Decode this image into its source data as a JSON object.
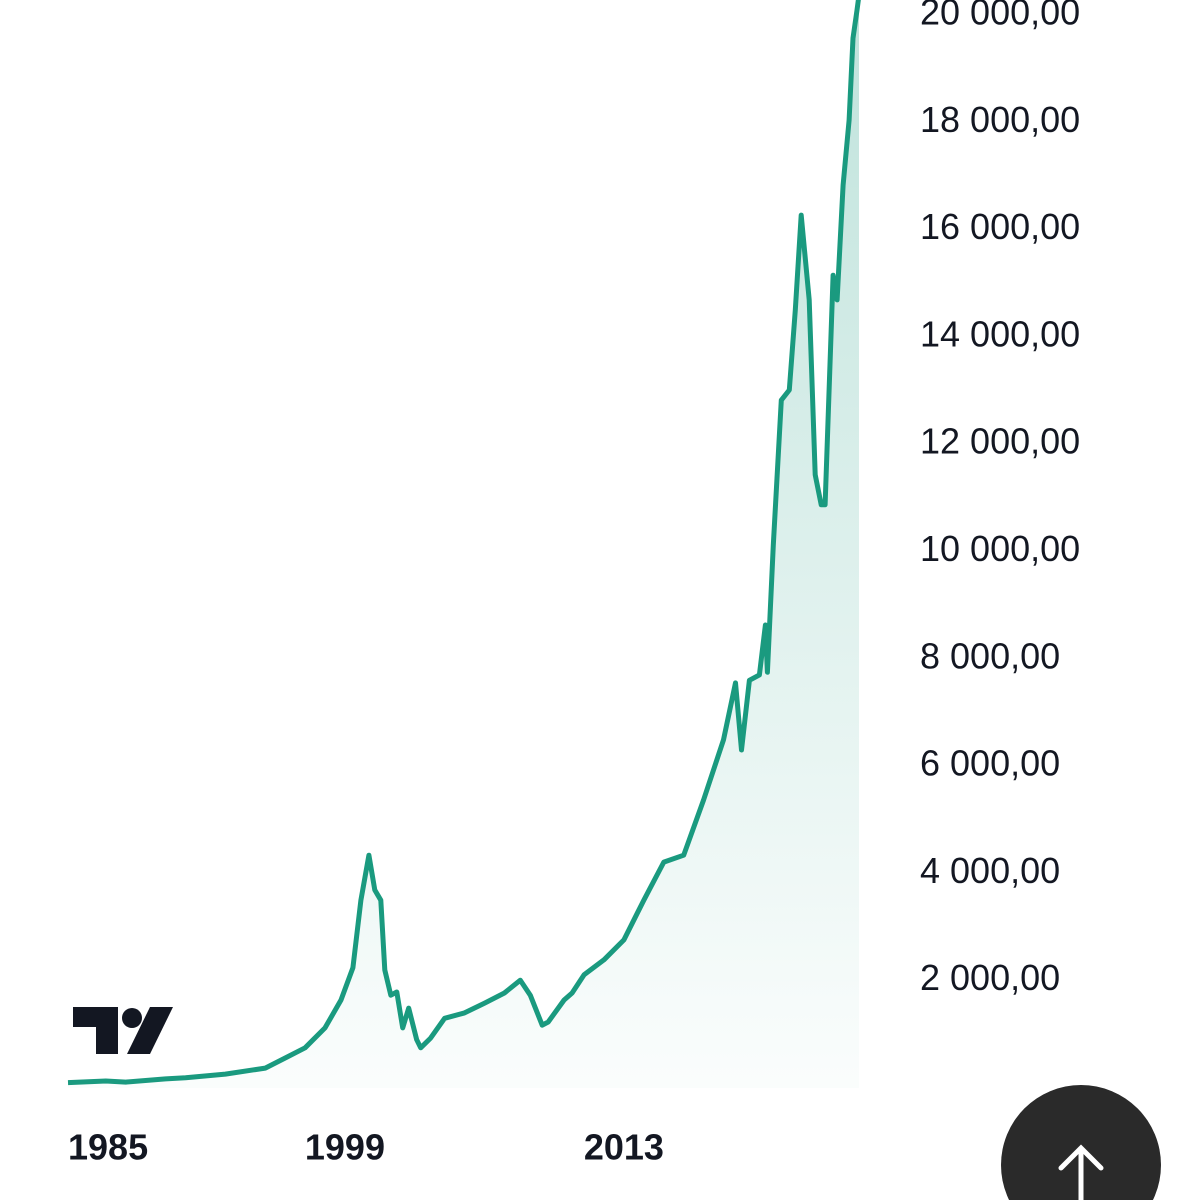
{
  "chart_data": {
    "type": "line",
    "x": [
      1985.1,
      1987,
      1988,
      1990,
      1991,
      1993,
      1995,
      1996,
      1997,
      1998,
      1998.8,
      1999.4,
      1999.8,
      2000.2,
      2000.5,
      2000.8,
      2001.0,
      2001.3,
      2001.6,
      2001.9,
      2002.2,
      2002.6,
      2002.8,
      2003.3,
      2004,
      2005,
      2006,
      2007,
      2007.8,
      2008.3,
      2008.9,
      2009.2,
      2010,
      2010.4,
      2011,
      2012,
      2013,
      2014,
      2015,
      2016,
      2017,
      2018,
      2018.6,
      2018.9,
      2019.3,
      2019.8,
      2020.1,
      2020.2,
      2020.5,
      2020.9,
      2021.3,
      2021.6,
      2021.9,
      2022.3,
      2022.6,
      2022.9,
      2023.1,
      2023.5,
      2023.7,
      2024,
      2024.3,
      2024.5,
      2024.7,
      2024.8
    ],
    "values": [
      100,
      130,
      110,
      170,
      190,
      260,
      370,
      560,
      750,
      1120,
      1640,
      2240,
      3500,
      4340,
      3690,
      3500,
      2200,
      1730,
      1790,
      1120,
      1490,
      900,
      750,
      930,
      1300,
      1400,
      1580,
      1770,
      2010,
      1730,
      1170,
      1230,
      1640,
      1770,
      2110,
      2390,
      2760,
      3500,
      4210,
      4340,
      5370,
      6490,
      7550,
      6300,
      7600,
      7700,
      8630,
      7750,
      10120,
      12820,
      13010,
      14500,
      16270,
      14690,
      11430,
      10870,
      10870,
      15150,
      14690,
      16830,
      18040,
      19570,
      20090,
      20370
    ],
    "color": "#1a9a7f",
    "xlim": [
      1985,
      2025
    ],
    "xticks": [
      1985,
      1999,
      2013
    ],
    "ylim": [
      0,
      20000
    ],
    "yticks": [
      {
        "value": 2000,
        "label": "2 000,00"
      },
      {
        "value": 4000,
        "label": "4 000,00"
      },
      {
        "value": 6000,
        "label": "6 000,00"
      },
      {
        "value": 8000,
        "label": "8 000,00"
      },
      {
        "value": 10000,
        "label": "10 000,00"
      },
      {
        "value": 12000,
        "label": "12 000,00"
      },
      {
        "value": 14000,
        "label": "14 000,00"
      },
      {
        "value": 16000,
        "label": "16 000,00"
      },
      {
        "value": 18000,
        "label": "18 000,00"
      },
      {
        "value": 20000,
        "label": "20 000,00"
      }
    ]
  }
}
